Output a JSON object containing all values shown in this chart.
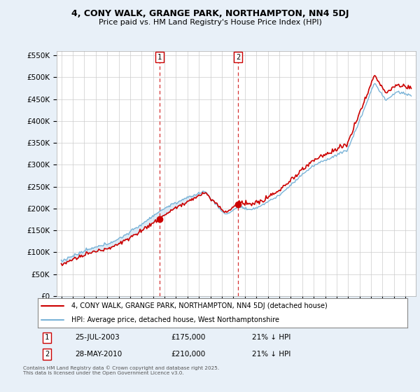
{
  "title": "4, CONY WALK, GRANGE PARK, NORTHAMPTON, NN4 5DJ",
  "subtitle": "Price paid vs. HM Land Registry's House Price Index (HPI)",
  "legend_line1": "4, CONY WALK, GRANGE PARK, NORTHAMPTON, NN4 5DJ (detached house)",
  "legend_line2": "HPI: Average price, detached house, West Northamptonshire",
  "footnote": "Contains HM Land Registry data © Crown copyright and database right 2025.\nThis data is licensed under the Open Government Licence v3.0.",
  "marker1_label": "1",
  "marker1_date": "25-JUL-2003",
  "marker1_price": "£175,000",
  "marker1_hpi": "21% ↓ HPI",
  "marker2_label": "2",
  "marker2_date": "28-MAY-2010",
  "marker2_price": "£210,000",
  "marker2_hpi": "21% ↓ HPI",
  "hpi_line_color": "#7ab4d8",
  "price_line_color": "#cc0000",
  "fill_color": "#ddeeff",
  "marker_vline_color": "#cc0000",
  "background_color": "#e8f0f8",
  "plot_bg_color": "#ffffff",
  "ylim": [
    0,
    560000
  ],
  "yticks": [
    0,
    50000,
    100000,
    150000,
    200000,
    250000,
    300000,
    350000,
    400000,
    450000,
    500000,
    550000
  ],
  "x_start_year": 1995,
  "x_end_year": 2025,
  "marker1_x": 2003.57,
  "marker2_x": 2010.41
}
